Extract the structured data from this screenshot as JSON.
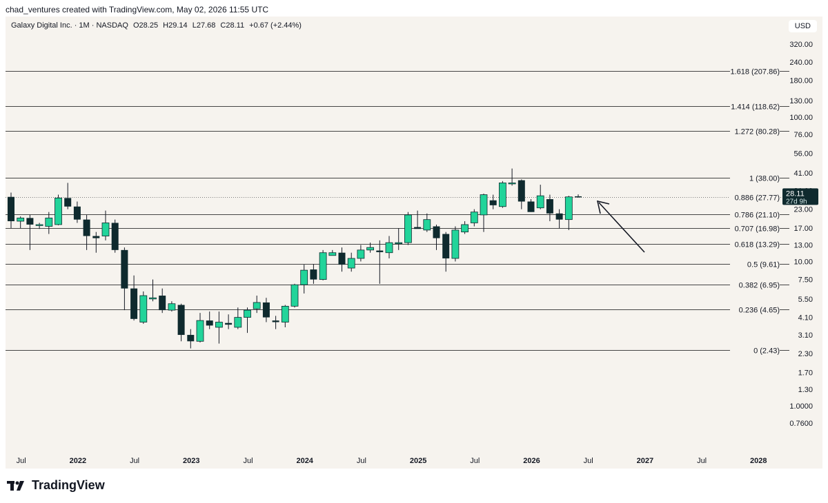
{
  "header": {
    "credit": "chad_ventures created with TradingView.com, May 02, 2026 11:55 UTC"
  },
  "legend": {
    "symbol": "Galaxy Digital Inc. · 1M · NASDAQ",
    "open": "O28.25",
    "high": "H29.14",
    "low": "L27.68",
    "close": "C28.11",
    "change": "+0.67 (+2.44%)"
  },
  "currency_label": "USD",
  "price_tag": {
    "price": "28.11",
    "countdown": "27d 9h"
  },
  "brand": {
    "name": "TradingView"
  },
  "colors": {
    "up": "#22d49a",
    "down": "#0f2a2e",
    "level_line": "#444444",
    "background": "#f6f3ee"
  },
  "chart_data": {
    "type": "candlestick",
    "interval": "1M",
    "y_scale": "log",
    "y_ticks": [
      "0.7600",
      "1.0000",
      "1.30",
      "1.70",
      "2.30",
      "3.10",
      "4.10",
      "5.50",
      "7.50",
      "10.00",
      "13.00",
      "17.00",
      "23.00",
      "31.00",
      "41.00",
      "56.00",
      "76.00",
      "100.00",
      "130.00",
      "180.00",
      "240.00",
      "320.00"
    ],
    "x_ticks": [
      {
        "label": "Jul",
        "idx": 1
      },
      {
        "label": "2022",
        "idx": 7
      },
      {
        "label": "Jul",
        "idx": 13
      },
      {
        "label": "2023",
        "idx": 19
      },
      {
        "label": "Jul",
        "idx": 25
      },
      {
        "label": "2024",
        "idx": 31
      },
      {
        "label": "Jul",
        "idx": 37
      },
      {
        "label": "2025",
        "idx": 43
      },
      {
        "label": "Jul",
        "idx": 49
      },
      {
        "label": "2026",
        "idx": 55
      },
      {
        "label": "Jul",
        "idx": 61
      },
      {
        "label": "2027",
        "idx": 67
      },
      {
        "label": "Jul",
        "idx": 73
      },
      {
        "label": "2028",
        "idx": 79
      }
    ],
    "fib_levels": [
      {
        "label": "1.618 (207.86)",
        "value": 207.86
      },
      {
        "label": "1.414 (118.62)",
        "value": 118.62
      },
      {
        "label": "1.272 (80.28)",
        "value": 80.28
      },
      {
        "label": "1 (38.00)",
        "value": 38.0
      },
      {
        "label": "0.886 (27.77)",
        "value": 27.77,
        "dotted": true
      },
      {
        "label": "0.786 (21.10)",
        "value": 21.1
      },
      {
        "label": "0.707 (16.98)",
        "value": 16.98
      },
      {
        "label": "0.618 (13.29)",
        "value": 13.29
      },
      {
        "label": "0.5 (9.61)",
        "value": 9.61
      },
      {
        "label": "0.382 (6.95)",
        "value": 6.95
      },
      {
        "label": "0.236 (4.65)",
        "value": 4.65
      },
      {
        "label": "0 (2.43)",
        "value": 2.43
      }
    ],
    "candles": [
      {
        "o": 28,
        "h": 30,
        "l": 17,
        "c": 19
      },
      {
        "o": 19,
        "h": 20.5,
        "l": 17,
        "c": 20
      },
      {
        "o": 20,
        "h": 21,
        "l": 12,
        "c": 18
      },
      {
        "o": 18,
        "h": 18.5,
        "l": 16.8,
        "c": 18
      },
      {
        "o": 17.5,
        "h": 22,
        "l": 15.5,
        "c": 20
      },
      {
        "o": 18,
        "h": 29,
        "l": 17.8,
        "c": 27.5
      },
      {
        "o": 27.5,
        "h": 35,
        "l": 23,
        "c": 24
      },
      {
        "o": 24,
        "h": 26,
        "l": 18.5,
        "c": 19.5
      },
      {
        "o": 19.5,
        "h": 21,
        "l": 12,
        "c": 15
      },
      {
        "o": 15,
        "h": 16,
        "l": 11.5,
        "c": 14.5
      },
      {
        "o": 15,
        "h": 22.5,
        "l": 14,
        "c": 18.5
      },
      {
        "o": 18.5,
        "h": 19.5,
        "l": 11.5,
        "c": 12
      },
      {
        "o": 12,
        "h": 12.5,
        "l": 4.6,
        "c": 6.5
      },
      {
        "o": 6.5,
        "h": 8,
        "l": 3.9,
        "c": 4
      },
      {
        "o": 3.8,
        "h": 6.2,
        "l": 3.7,
        "c": 5.8
      },
      {
        "o": 5.5,
        "h": 7.5,
        "l": 5.3,
        "c": 5.6
      },
      {
        "o": 5.8,
        "h": 6.5,
        "l": 4.4,
        "c": 4.6
      },
      {
        "o": 4.6,
        "h": 5.3,
        "l": 4.5,
        "c": 5.1
      },
      {
        "o": 5,
        "h": 5.1,
        "l": 2.8,
        "c": 3.1
      },
      {
        "o": 3.1,
        "h": 3.4,
        "l": 2.5,
        "c": 2.8
      },
      {
        "o": 2.8,
        "h": 4.4,
        "l": 2.75,
        "c": 3.9
      },
      {
        "o": 3.9,
        "h": 4.5,
        "l": 3.4,
        "c": 3.6
      },
      {
        "o": 3.5,
        "h": 4.5,
        "l": 2.7,
        "c": 3.8
      },
      {
        "o": 3.75,
        "h": 4.3,
        "l": 3.4,
        "c": 3.65
      },
      {
        "o": 3.5,
        "h": 4.8,
        "l": 3.4,
        "c": 4.1
      },
      {
        "o": 4.1,
        "h": 4.8,
        "l": 3.2,
        "c": 4.6
      },
      {
        "o": 4.7,
        "h": 5.8,
        "l": 4.4,
        "c": 5.2
      },
      {
        "o": 5.2,
        "h": 5.6,
        "l": 3.8,
        "c": 4.1
      },
      {
        "o": 3.9,
        "h": 4.2,
        "l": 3.4,
        "c": 3.8
      },
      {
        "o": 3.8,
        "h": 5,
        "l": 3.5,
        "c": 4.9
      },
      {
        "o": 4.9,
        "h": 7,
        "l": 4.8,
        "c": 6.9
      },
      {
        "o": 6.9,
        "h": 9.5,
        "l": 6,
        "c": 8.7
      },
      {
        "o": 8.8,
        "h": 9.6,
        "l": 7,
        "c": 7.5
      },
      {
        "o": 7.5,
        "h": 12,
        "l": 7.4,
        "c": 11.5
      },
      {
        "o": 11,
        "h": 12,
        "l": 11,
        "c": 11.5
      },
      {
        "o": 11.5,
        "h": 12.5,
        "l": 8.5,
        "c": 9.5
      },
      {
        "o": 9,
        "h": 11.5,
        "l": 8.5,
        "c": 10.5
      },
      {
        "o": 10.5,
        "h": 13,
        "l": 10,
        "c": 12
      },
      {
        "o": 12,
        "h": 13.5,
        "l": 11.5,
        "c": 12.5
      },
      {
        "o": 11.9,
        "h": 14,
        "l": 7,
        "c": 11.6
      },
      {
        "o": 11.5,
        "h": 15,
        "l": 10.5,
        "c": 13.5
      },
      {
        "o": 13.5,
        "h": 17,
        "l": 12,
        "c": 13.5
      },
      {
        "o": 13.5,
        "h": 22,
        "l": 13,
        "c": 21
      },
      {
        "o": 17.3,
        "h": 22.5,
        "l": 17,
        "c": 16.8
      },
      {
        "o": 16.5,
        "h": 21.5,
        "l": 16,
        "c": 19.5
      },
      {
        "o": 17.5,
        "h": 18,
        "l": 12,
        "c": 14.5
      },
      {
        "o": 15.5,
        "h": 16,
        "l": 8.5,
        "c": 10.5
      },
      {
        "o": 10.5,
        "h": 17.5,
        "l": 10,
        "c": 16.5
      },
      {
        "o": 16,
        "h": 19,
        "l": 15.5,
        "c": 18
      },
      {
        "o": 18.5,
        "h": 23,
        "l": 17.5,
        "c": 22
      },
      {
        "o": 21,
        "h": 29.5,
        "l": 16,
        "c": 29
      },
      {
        "o": 26.5,
        "h": 29,
        "l": 23,
        "c": 24.5
      },
      {
        "o": 24,
        "h": 36,
        "l": 23.5,
        "c": 35
      },
      {
        "o": 34.5,
        "h": 44,
        "l": 33.5,
        "c": 35
      },
      {
        "o": 36.5,
        "h": 37,
        "l": 23,
        "c": 26
      },
      {
        "o": 26,
        "h": 27,
        "l": 22,
        "c": 22
      },
      {
        "o": 23.5,
        "h": 34,
        "l": 23,
        "c": 28.5
      },
      {
        "o": 27,
        "h": 29,
        "l": 19,
        "c": 21.5
      },
      {
        "o": 21.5,
        "h": 23,
        "l": 17,
        "c": 19.5
      },
      {
        "o": 19.5,
        "h": 28.5,
        "l": 16.5,
        "c": 28
      },
      {
        "o": 28.25,
        "h": 29.14,
        "l": 27.68,
        "c": 28.11
      }
    ]
  }
}
